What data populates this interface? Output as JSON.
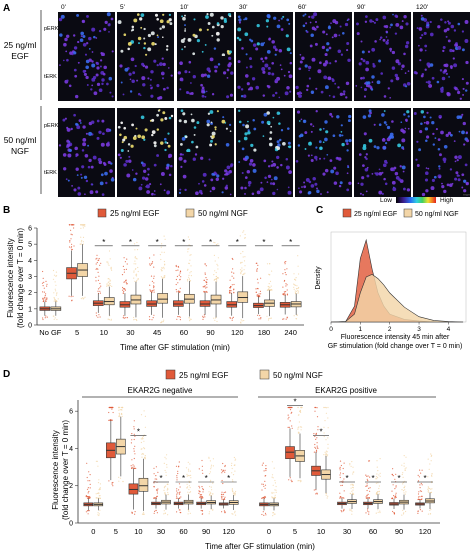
{
  "panel_a": {
    "letter": "A",
    "timepoints": [
      "0'",
      "5'",
      "10'",
      "30'",
      "60'",
      "90'",
      "120'"
    ],
    "conditions": [
      {
        "name_line1": "25 ng/ml",
        "name_line2": "EGF",
        "rows": [
          "pERK",
          "tERK"
        ]
      },
      {
        "name_line1": "50 ng/ml",
        "name_line2": "NGF",
        "rows": [
          "pERK",
          "tERK"
        ]
      }
    ],
    "scale_low": "Low",
    "scale_high": "High"
  },
  "panel_b": {
    "letter": "B",
    "ylabel_line1": "Fluorescence intensity",
    "ylabel_line2": "(fold change over T = 0 min)",
    "xlabel": "Time after GF stimulation (min)",
    "legend": [
      "25 ng/ml EGF",
      "50 ng/ml NGF"
    ],
    "sig_marker": "*"
  },
  "panel_c": {
    "letter": "C",
    "ylabel": "Density",
    "xlabel_line1": "Fluorescence intensity 45 min after",
    "xlabel_line2": "GF stimulation (fold change over T = 0 min)",
    "legend": [
      "25 ng/ml EGF",
      "50 ng/ml NGF"
    ]
  },
  "panel_d": {
    "letter": "D",
    "ylabel_line1": "Fluorescence intensity",
    "ylabel_line2": "(fold change over T = 0 min)",
    "xlabel": "Time after GF stimulation (min)",
    "legend": [
      "25 ng/ml EGF",
      "50 ng/ml NGF"
    ],
    "group_labels": [
      "EKAR2G negative",
      "EKAR2G positive"
    ],
    "sig_marker": "*"
  },
  "colors": {
    "egf": "#e05a3a",
    "ngf": "#f3d6a8",
    "line": "#333333",
    "cell_bg": "#0a0a12"
  },
  "chart_data": [
    {
      "panel": "B",
      "type": "box",
      "categories": [
        "No GF",
        "5",
        "10",
        "30",
        "45",
        "60",
        "90",
        "120",
        "180",
        "240"
      ],
      "series": [
        {
          "name": "25 ng/ml EGF",
          "median": [
            1.0,
            3.2,
            1.35,
            1.25,
            1.3,
            1.3,
            1.3,
            1.25,
            1.2,
            1.25
          ],
          "q1": [
            0.9,
            2.85,
            1.2,
            1.1,
            1.15,
            1.15,
            1.15,
            1.1,
            1.08,
            1.1
          ],
          "q3": [
            1.12,
            3.55,
            1.5,
            1.45,
            1.5,
            1.5,
            1.5,
            1.45,
            1.35,
            1.4
          ]
        },
        {
          "name": "50 ng/ml NGF",
          "median": [
            1.0,
            3.4,
            1.45,
            1.55,
            1.6,
            1.6,
            1.55,
            1.7,
            1.35,
            1.3
          ],
          "q1": [
            0.9,
            3.0,
            1.25,
            1.3,
            1.35,
            1.35,
            1.3,
            1.4,
            1.15,
            1.12
          ],
          "q3": [
            1.12,
            3.8,
            1.7,
            1.85,
            1.95,
            1.9,
            1.85,
            2.05,
            1.55,
            1.45
          ]
        }
      ],
      "significant": [
        "10",
        "30",
        "45",
        "60",
        "90",
        "120",
        "180",
        "240"
      ],
      "ylim": [
        0,
        6
      ],
      "yticks": [
        0,
        1,
        2,
        3,
        4,
        5,
        6
      ]
    },
    {
      "panel": "C",
      "type": "density",
      "x": [
        0,
        0.5,
        0.8,
        1.0,
        1.2,
        1.4,
        1.6,
        1.8,
        2.0,
        2.5,
        3.0,
        3.5,
        4.0,
        4.5
      ],
      "series": [
        {
          "name": "25 ng/ml EGF",
          "values": [
            0,
            0.01,
            0.3,
            1.2,
            1.55,
            1.0,
            0.55,
            0.3,
            0.15,
            0.05,
            0.02,
            0,
            0,
            0
          ]
        },
        {
          "name": "50 ng/ml NGF",
          "values": [
            0,
            0.01,
            0.15,
            0.55,
            0.85,
            0.9,
            0.82,
            0.7,
            0.55,
            0.28,
            0.1,
            0.03,
            0.01,
            0
          ]
        }
      ],
      "xticks": [
        0,
        1,
        2,
        3,
        4
      ],
      "xlim": [
        0,
        4.6
      ],
      "ylim": [
        0,
        1.7
      ]
    },
    {
      "panel": "D",
      "type": "box",
      "groups": [
        {
          "name": "EKAR2G negative",
          "categories": [
            "0",
            "5",
            "10",
            "30",
            "60",
            "90",
            "120"
          ],
          "series": [
            {
              "name": "25 ng/ml EGF",
              "median": [
                1.0,
                3.9,
                1.8,
                1.05,
                1.05,
                1.05,
                1.02
              ],
              "q1": [
                0.92,
                3.5,
                1.55,
                0.98,
                0.98,
                0.98,
                0.96
              ],
              "q3": [
                1.08,
                4.3,
                2.1,
                1.12,
                1.12,
                1.12,
                1.08
              ]
            },
            {
              "name": "50 ng/ml NGF",
              "median": [
                1.0,
                4.1,
                2.0,
                1.12,
                1.12,
                1.1,
                1.1
              ],
              "q1": [
                0.92,
                3.7,
                1.7,
                1.02,
                1.02,
                1.02,
                1.0
              ],
              "q3": [
                1.08,
                4.5,
                2.4,
                1.22,
                1.22,
                1.2,
                1.2
              ]
            }
          ],
          "significant": [
            "10",
            "30",
            "60",
            "90",
            "120"
          ]
        },
        {
          "name": "EKAR2G positive",
          "categories": [
            "0",
            "5",
            "10",
            "30",
            "60",
            "90",
            "120"
          ],
          "series": [
            {
              "name": "25 ng/ml EGF",
              "median": [
                1.0,
                3.8,
                2.8,
                1.05,
                1.05,
                1.02,
                1.02
              ],
              "q1": [
                0.92,
                3.45,
                2.55,
                0.98,
                0.98,
                0.96,
                0.96
              ],
              "q3": [
                1.08,
                4.1,
                3.05,
                1.12,
                1.12,
                1.1,
                1.08
              ]
            },
            {
              "name": "50 ng/ml NGF",
              "median": [
                1.0,
                3.6,
                2.6,
                1.15,
                1.15,
                1.12,
                1.18
              ],
              "q1": [
                0.92,
                3.3,
                2.35,
                1.05,
                1.05,
                1.02,
                1.08
              ],
              "q3": [
                1.08,
                3.9,
                2.85,
                1.25,
                1.25,
                1.22,
                1.3
              ]
            }
          ],
          "significant": [
            "5",
            "10",
            "30",
            "60",
            "90",
            "120"
          ]
        }
      ],
      "ylim": [
        0,
        6.6
      ],
      "yticks": [
        0,
        2,
        4,
        6
      ]
    }
  ]
}
